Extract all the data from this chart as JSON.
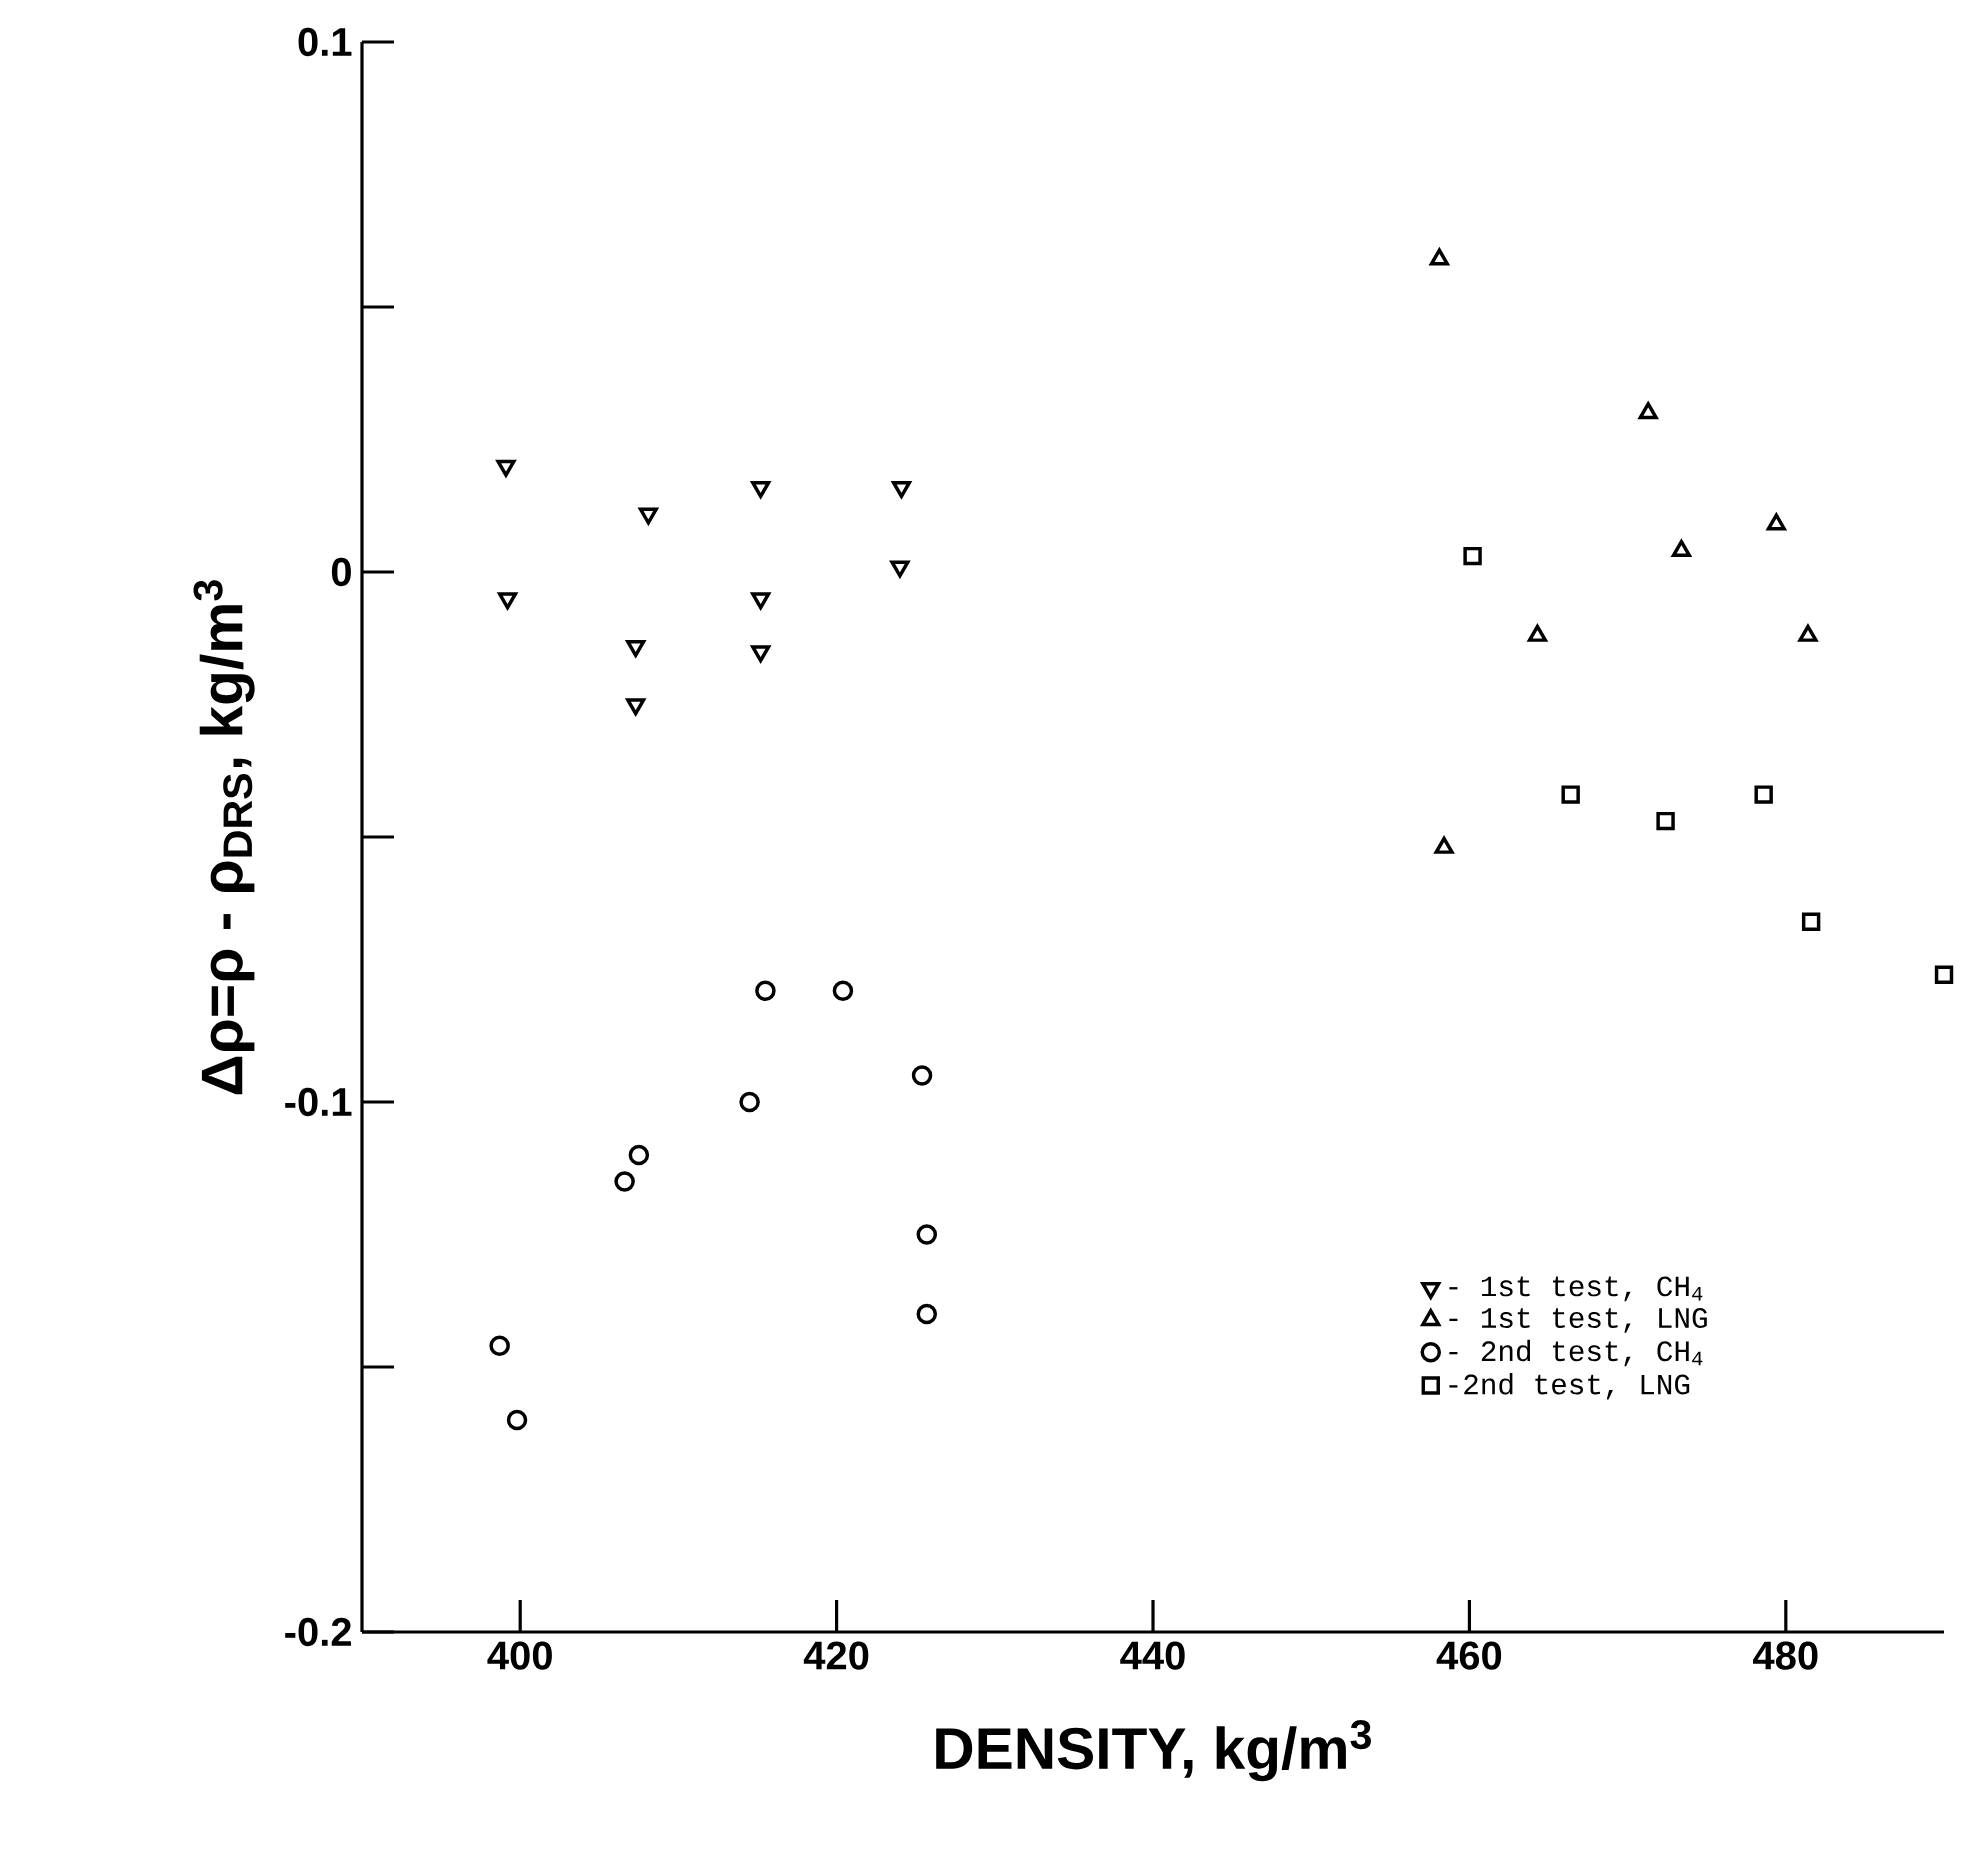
{
  "chart_data": {
    "type": "scatter",
    "xlabel": "DENSITY, kg/m$^{3}$",
    "ylabel": "Δρ=ρ - ρ$_{DRS}$, kg/m$^{3}$",
    "xlim": [
      390,
      490
    ],
    "ylim": [
      -0.2,
      0.1
    ],
    "xticks": [
      400,
      420,
      440,
      460,
      480
    ],
    "yticks": [
      {
        "value": -0.2,
        "label": "-0.2"
      },
      {
        "value": -0.15,
        "label": null
      },
      {
        "value": -0.1,
        "label": "-0.1"
      },
      {
        "value": -0.05,
        "label": null
      },
      {
        "value": 0,
        "label": "0"
      },
      {
        "value": 0.05,
        "label": null
      },
      {
        "value": 0.1,
        "label": "0.1"
      }
    ],
    "grid": false,
    "legend": "bottom right",
    "series": [
      {
        "name": "- 1st test, CH$_{4}$",
        "color": "#000000",
        "marker": "triangle_down",
        "x": [
          399.1,
          399.2,
          408.1,
          407.3,
          407.3,
          415.2,
          415.2,
          415.2,
          424.1,
          424.0
        ],
        "values": [
          0.02,
          -0.005,
          0.011,
          -0.014,
          -0.025,
          0.016,
          -0.005,
          -0.015,
          0.016,
          0.001
        ]
      },
      {
        "name": "- 1st test, LNG",
        "color": "#000000",
        "marker": "triangle",
        "x": [
          458.1,
          471.3,
          479.4,
          473.4,
          464.3,
          481.4,
          458.4
        ],
        "values": [
          0.059,
          0.03,
          0.009,
          0.004,
          -0.012,
          -0.012,
          -0.052
        ]
      },
      {
        "name": "- 2nd test, CH$_{4}$",
        "color": "#000000",
        "marker": "circle",
        "x": [
          398.7,
          399.8,
          406.6,
          407.5,
          414.5,
          415.5,
          420.4,
          425.4,
          425.7,
          425.7
        ],
        "values": [
          -0.146,
          -0.16,
          -0.115,
          -0.11,
          -0.1,
          -0.079,
          -0.079,
          -0.095,
          -0.125,
          -0.14
        ]
      },
      {
        "name": "-2nd test, LNG",
        "color": "#000000",
        "marker": "square",
        "x": [
          460.2,
          466.4,
          472.4,
          478.6,
          481.6,
          490
        ],
        "values": [
          0.003,
          -0.042,
          -0.047,
          -0.042,
          -0.066,
          -0.076
        ]
      }
    ]
  }
}
